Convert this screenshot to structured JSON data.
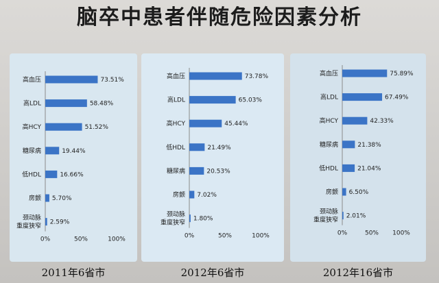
{
  "title": "脑卒中患者伴随危险因素分析",
  "colors": {
    "bar": "#3b74c6",
    "axis": "#8a8a8a"
  },
  "chart_data": [
    {
      "type": "bar",
      "orientation": "horizontal",
      "caption": "2011年6省市",
      "categories": [
        "高血压",
        "高LDL",
        "高HCY",
        "糖尿病",
        "低HDL",
        "房颤",
        [
          "颈动脉",
          "重度狭窄"
        ]
      ],
      "values": [
        73.51,
        58.48,
        51.52,
        19.44,
        16.66,
        5.7,
        2.59
      ],
      "value_labels": [
        "73.51%",
        "58.48%",
        "51.52%",
        "19.44%",
        "16.66%",
        "5.70%",
        "2.59%"
      ],
      "xlim": [
        0,
        100
      ],
      "xticks": [
        "0%",
        "50%",
        "100%"
      ],
      "grid": false
    },
    {
      "type": "bar",
      "orientation": "horizontal",
      "caption": "2012年6省市",
      "categories": [
        "高血压",
        "高LDL",
        "高HCY",
        "低HDL",
        "糖尿病",
        "房颤",
        [
          "颈动脉",
          "重度狭窄"
        ]
      ],
      "values": [
        73.78,
        65.03,
        45.44,
        21.49,
        20.53,
        7.02,
        1.8
      ],
      "value_labels": [
        "73.78%",
        "65.03%",
        "45.44%",
        "21.49%",
        "20.53%",
        "7.02%",
        "1.80%"
      ],
      "xlim": [
        0,
        100
      ],
      "xticks": [
        "0%",
        "50%",
        "100%"
      ],
      "grid": false
    },
    {
      "type": "bar",
      "orientation": "horizontal",
      "caption": "2012年16省市",
      "categories": [
        "高血压",
        "高LDL",
        "高HCY",
        "糖尿病",
        "低HDL",
        "房颤",
        [
          "颈动脉",
          "重度狭窄"
        ]
      ],
      "values": [
        75.89,
        67.49,
        42.33,
        21.38,
        21.04,
        6.5,
        2.01
      ],
      "value_labels": [
        "75.89%",
        "67.49%",
        "42.33%",
        "21.38%",
        "21.04%",
        "6.50%",
        "2.01%"
      ],
      "xlim": [
        0,
        100
      ],
      "xticks": [
        "0%",
        "50%",
        "100%"
      ],
      "grid": false
    }
  ]
}
